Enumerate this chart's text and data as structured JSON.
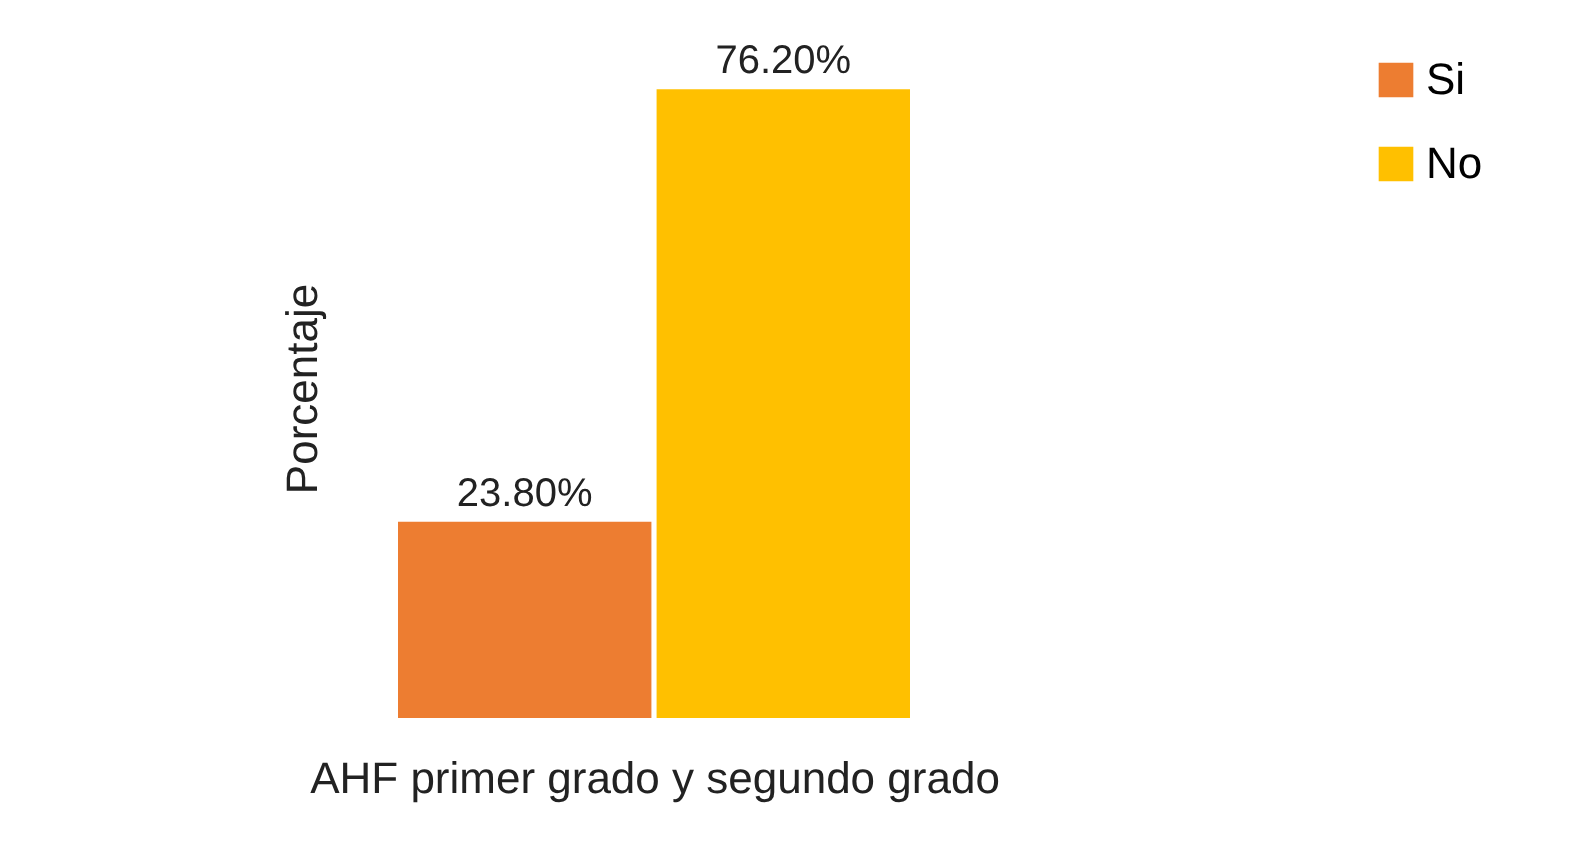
{
  "chart_data": {
    "type": "bar",
    "xlabel": "AHF primer grado y segundo grado",
    "ylabel": "Porcentaje",
    "categories": [
      null
    ],
    "legend": "right",
    "series": [
      {
        "name": "Si",
        "color": "#ed7d31",
        "values": [
          23.8
        ],
        "value_labels": [
          "23.80%"
        ]
      },
      {
        "name": "No",
        "color": "#ffc000",
        "values": [
          76.2
        ],
        "value_labels": [
          "76.20%"
        ]
      }
    ]
  }
}
